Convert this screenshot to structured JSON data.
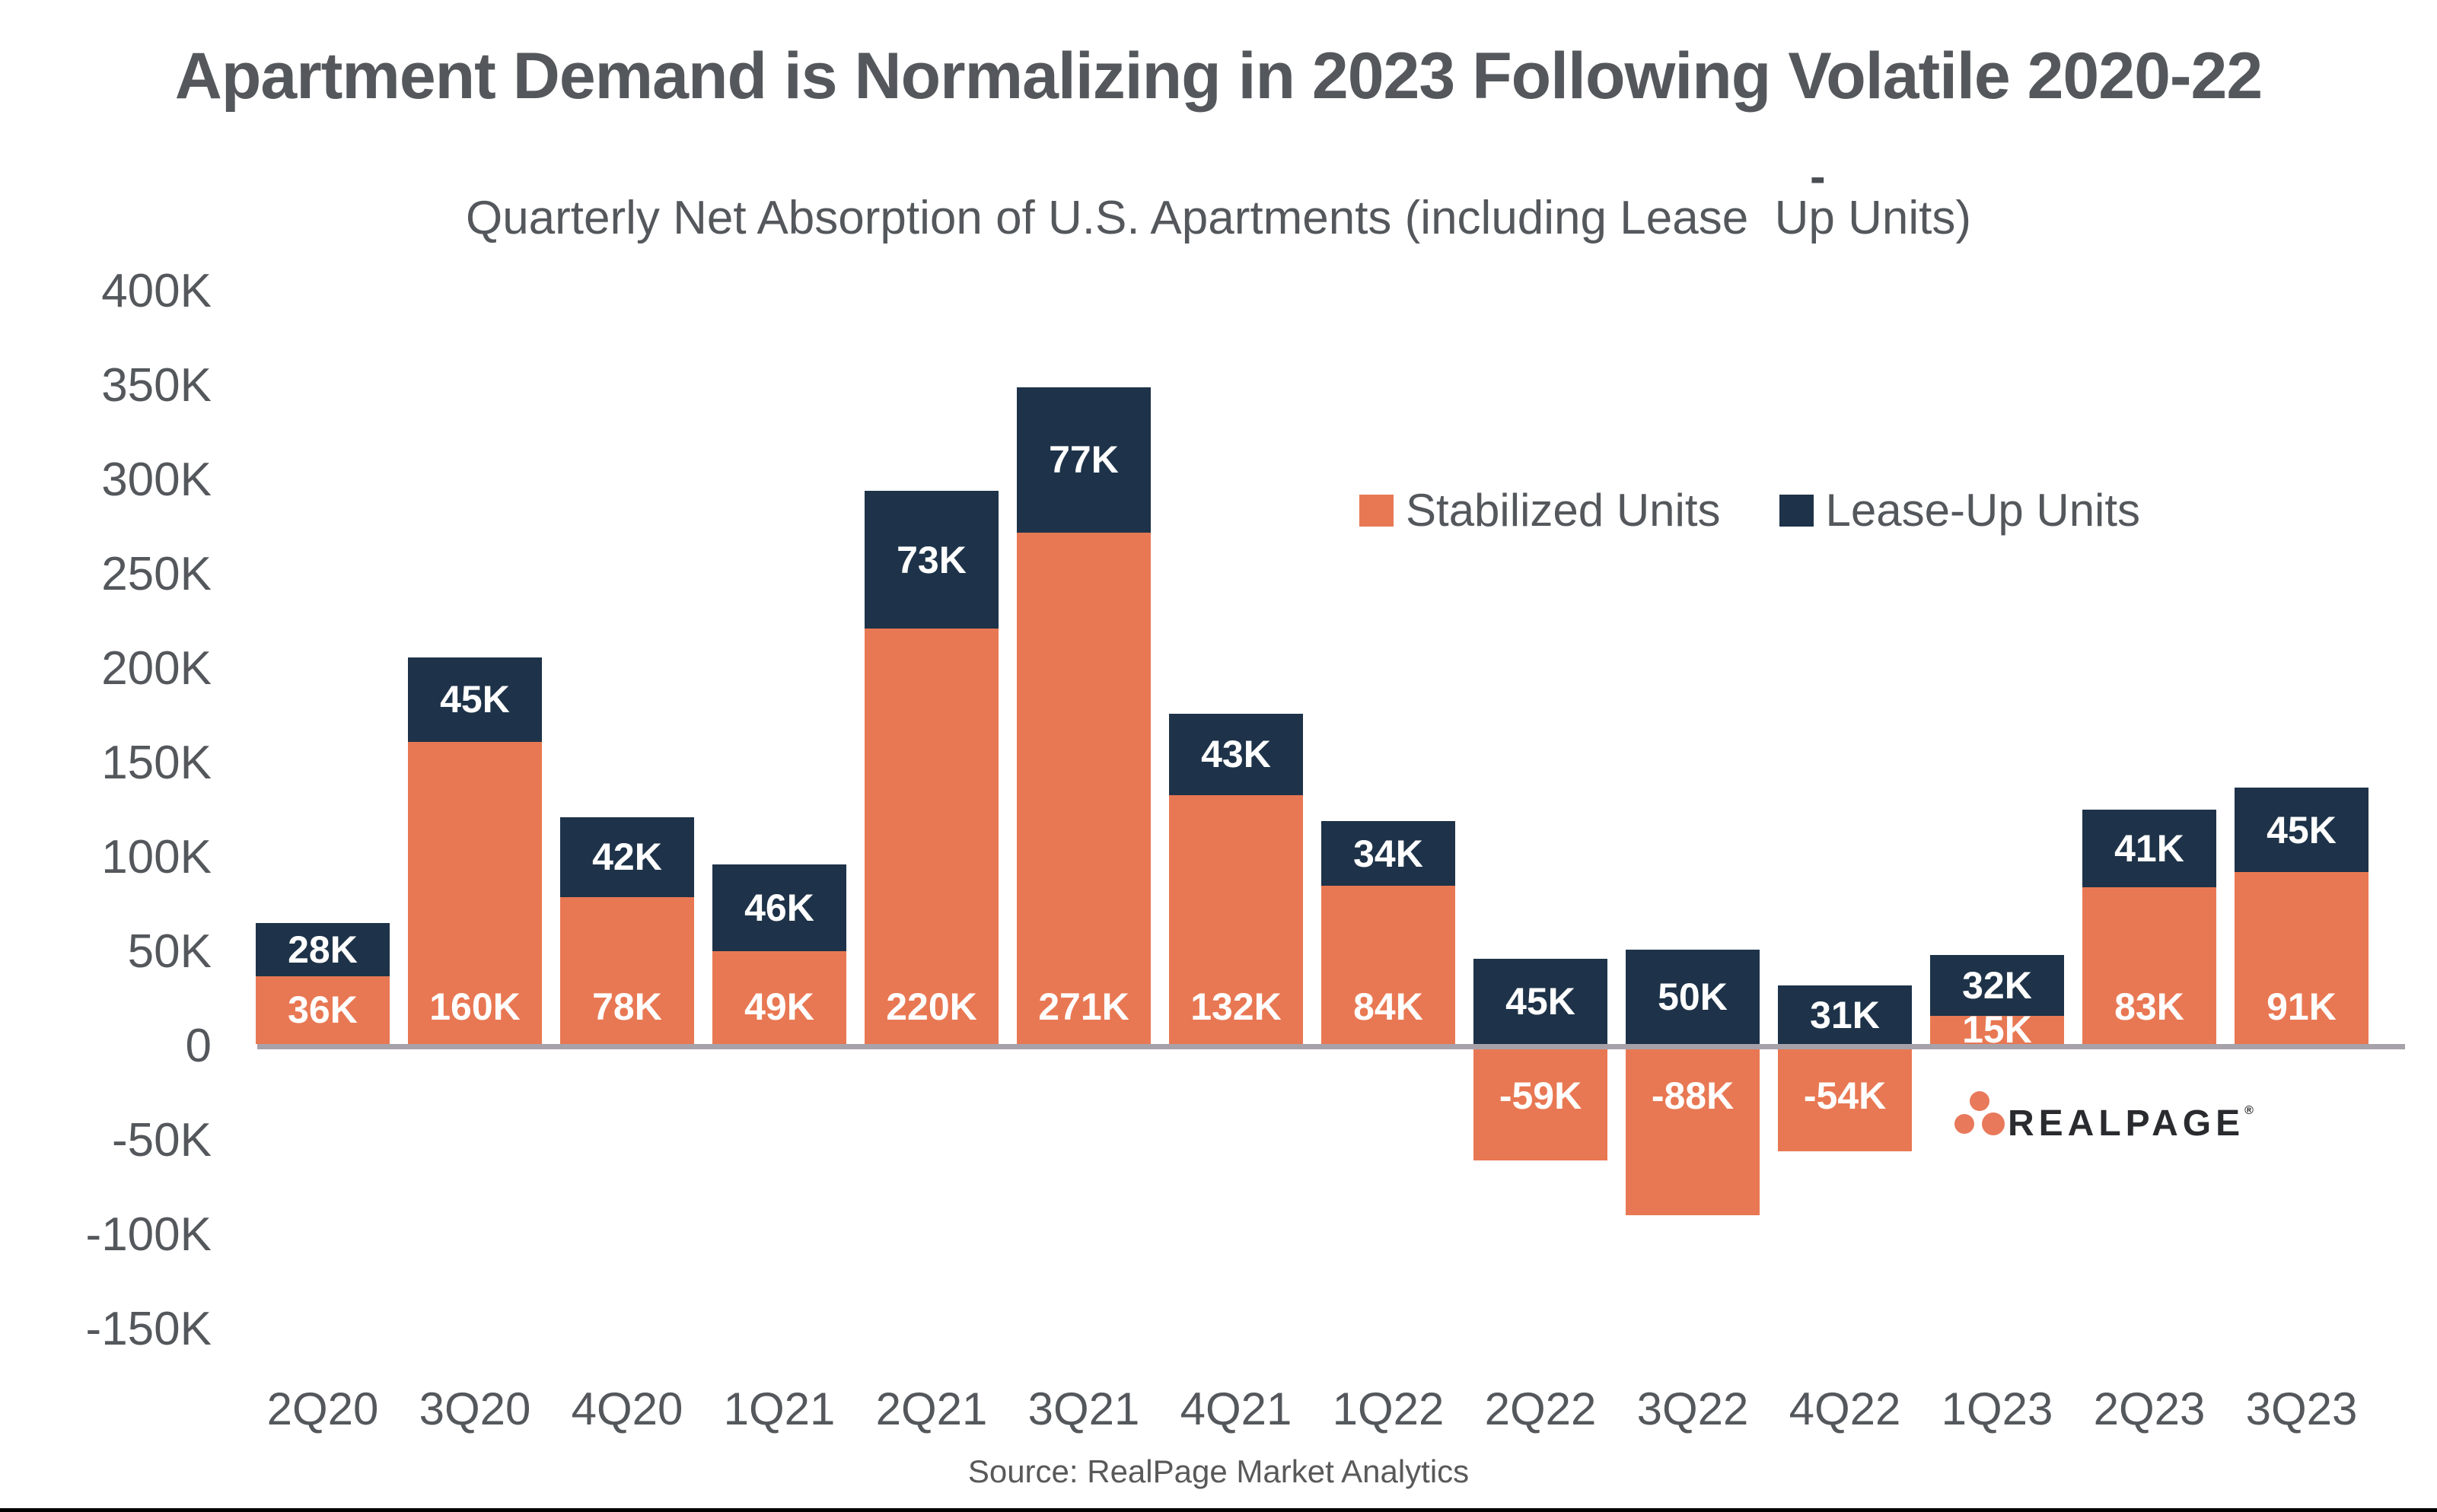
{
  "title": "Apartment Demand is Normalizing in 2023 Following Volatile 2020-22",
  "subtitle": "Quarterly Net Absorption of U.S. Apartments (including Lease  Up Units)",
  "hyphen_artifact": "-",
  "source": "Source: RealPage Market Analytics",
  "legend": {
    "stabilized": "Stabilized Units",
    "lease_up": "Lease-Up Units"
  },
  "logo": {
    "text": "REALPAGE",
    "mark": "®"
  },
  "colors": {
    "stabilized": "#E87853",
    "lease_up": "#1E3349",
    "axis_line": "#A7A2AA",
    "text": "#54585C",
    "bar_label": "#FFFFFF",
    "logo_text": "#2A2B2E",
    "logo_dot": "#E8795B"
  },
  "chart_data": {
    "type": "bar",
    "stacked": true,
    "title": "Apartment Demand is Normalizing in 2023 Following Volatile 2020-22",
    "subtitle": "Quarterly Net Absorption of U.S. Apartments (including Lease Up Units)",
    "categories": [
      "2Q20",
      "3Q20",
      "4Q20",
      "1Q21",
      "2Q21",
      "3Q21",
      "4Q21",
      "1Q22",
      "2Q22",
      "3Q22",
      "4Q22",
      "1Q23",
      "2Q23",
      "3Q23"
    ],
    "series": [
      {
        "name": "Stabilized Units",
        "color": "#E87853",
        "values": [
          36,
          160,
          78,
          49,
          220,
          271,
          132,
          84,
          -59,
          -88,
          -54,
          15,
          83,
          91
        ],
        "labels": [
          "36K",
          "160K",
          "78K",
          "49K",
          "220K",
          "271K",
          "132K",
          "84K",
          "-59K",
          "-88K",
          "-54K",
          "15K",
          "83K",
          "91K"
        ]
      },
      {
        "name": "Lease-Up Units",
        "color": "#1E3349",
        "values": [
          28,
          45,
          42,
          46,
          73,
          77,
          43,
          34,
          45,
          50,
          31,
          32,
          41,
          45
        ],
        "labels": [
          "28K",
          "45K",
          "42K",
          "46K",
          "73K",
          "77K",
          "43K",
          "34K",
          "45K",
          "50K",
          "31K",
          "32K",
          "41K",
          "45K"
        ]
      }
    ],
    "unit": "thousands of apartment units",
    "y_axis": {
      "min": -150,
      "max": 400,
      "step": 50,
      "tick_labels": [
        "400K",
        "350K",
        "300K",
        "250K",
        "200K",
        "150K",
        "100K",
        "50K",
        "0",
        "-50K",
        "-100K",
        "-150K"
      ]
    },
    "grid": false,
    "legend_position": "center-right"
  }
}
